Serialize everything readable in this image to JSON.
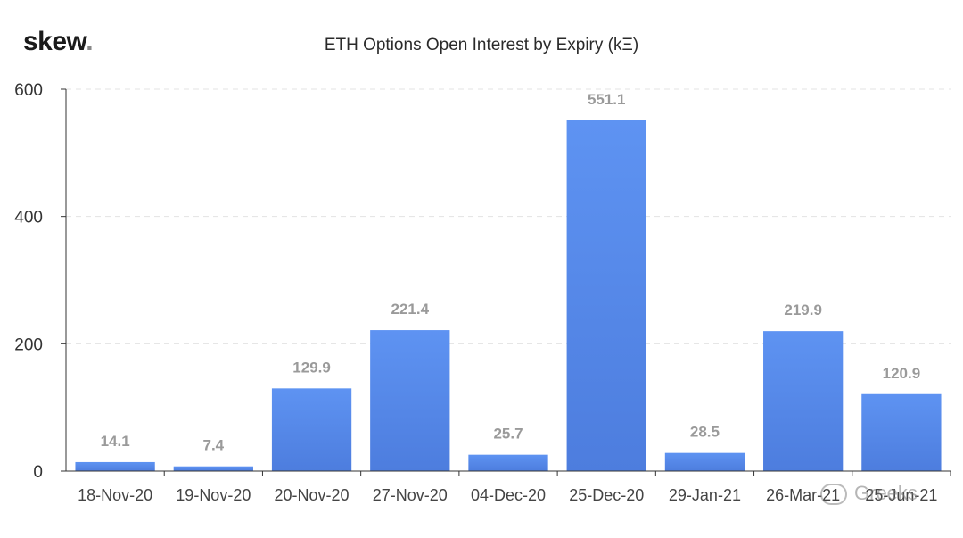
{
  "brand": {
    "logo_text": "skew",
    "logo_dot": "."
  },
  "watermark": {
    "text": "Greeks"
  },
  "colors": {
    "bar": "#5b8def",
    "bar_bottom": "#4f7fe0",
    "label": "#9a9a9a",
    "axis": "#333333",
    "grid": "#e3e3e3"
  },
  "chart_data": {
    "type": "bar",
    "title": "ETH Options Open Interest by Expiry (kΞ)",
    "xlabel": "",
    "ylabel": "",
    "categories": [
      "18-Nov-20",
      "19-Nov-20",
      "20-Nov-20",
      "27-Nov-20",
      "04-Dec-20",
      "25-Dec-20",
      "29-Jan-21",
      "26-Mar-21",
      "25-Jun-21"
    ],
    "values": [
      14.1,
      7.4,
      129.9,
      221.4,
      25.7,
      551.1,
      28.5,
      219.9,
      120.9
    ],
    "value_labels": [
      "14.1",
      "7.4",
      "129.9",
      "221.4",
      "25.7",
      "551.1",
      "28.5",
      "219.9",
      "120.9"
    ],
    "ylim": [
      0,
      600
    ],
    "yticks": [
      0,
      200,
      400,
      600
    ],
    "grid": true,
    "legend": "none"
  }
}
